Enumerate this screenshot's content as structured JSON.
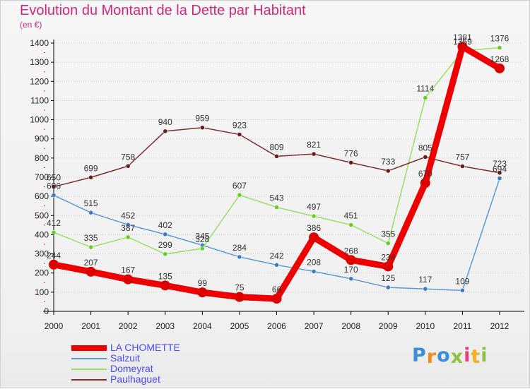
{
  "page": {
    "title": "Evolution du Montant de la Dette par Habitant",
    "unit_label": "(en €)",
    "logo_text": "Proxiti"
  },
  "colors": {
    "title": "#d4287a",
    "axis": "#000000",
    "grid": "#cccccc",
    "legend_text": "#4a4aff"
  },
  "chart_data": {
    "type": "line",
    "title": "Evolution du Montant de la Dette par Habitant",
    "subtitle": "(en €)",
    "xlabel": "",
    "ylabel": "",
    "x": [
      "2000",
      "2001",
      "2002",
      "2003",
      "2004",
      "2005",
      "2006",
      "2007",
      "2008",
      "2009",
      "2010",
      "2011",
      "2012"
    ],
    "ylim": [
      0,
      1400
    ],
    "yticks": [
      0,
      100,
      200,
      300,
      400,
      500,
      600,
      700,
      800,
      900,
      1000,
      1100,
      1200,
      1300,
      1400
    ],
    "grid": "horizontal dotted",
    "legend_position": "bottom-left",
    "series": [
      {
        "name": "LA CHOMETTE",
        "color": "#ee0000",
        "marker_color": "#dd0000",
        "values": [
          244,
          207,
          167,
          135,
          99,
          75,
          66,
          386,
          268,
          234,
          670,
          1381,
          1268
        ],
        "labels": [
          "244",
          "207",
          "167",
          "135",
          "99",
          "75",
          "66",
          "386",
          "268",
          "234",
          "670",
          "1381",
          "1268"
        ]
      },
      {
        "name": "Salzuit",
        "color": "#5a9ad6",
        "marker_color": "#3a7ac6",
        "values": [
          606,
          515,
          452,
          402,
          345,
          284,
          242,
          208,
          170,
          125,
          117,
          109,
          694
        ],
        "labels": [
          "606",
          "515",
          "452",
          "402",
          "345",
          "284",
          "242",
          "208",
          "170",
          "125",
          "117",
          "109",
          "694"
        ]
      },
      {
        "name": "Domeyrat",
        "color": "#99e066",
        "marker_color": "#66cc22",
        "values": [
          412,
          335,
          387,
          299,
          328,
          607,
          543,
          497,
          451,
          355,
          1114,
          1359,
          1376
        ],
        "labels": [
          "412",
          "335",
          "387",
          "299",
          "328",
          "607",
          "543",
          "497",
          "451",
          "355",
          "1114",
          "1359",
          "1376"
        ]
      },
      {
        "name": "Paulhaguet",
        "color": "#7a2e2e",
        "marker_color": "#6b1a1a",
        "values": [
          650,
          699,
          758,
          940,
          959,
          923,
          809,
          821,
          776,
          733,
          805,
          757,
          723
        ],
        "labels": [
          "650",
          "699",
          "758",
          "940",
          "959",
          "923",
          "809",
          "821",
          "776",
          "733",
          "805",
          "757",
          "723"
        ]
      }
    ]
  }
}
